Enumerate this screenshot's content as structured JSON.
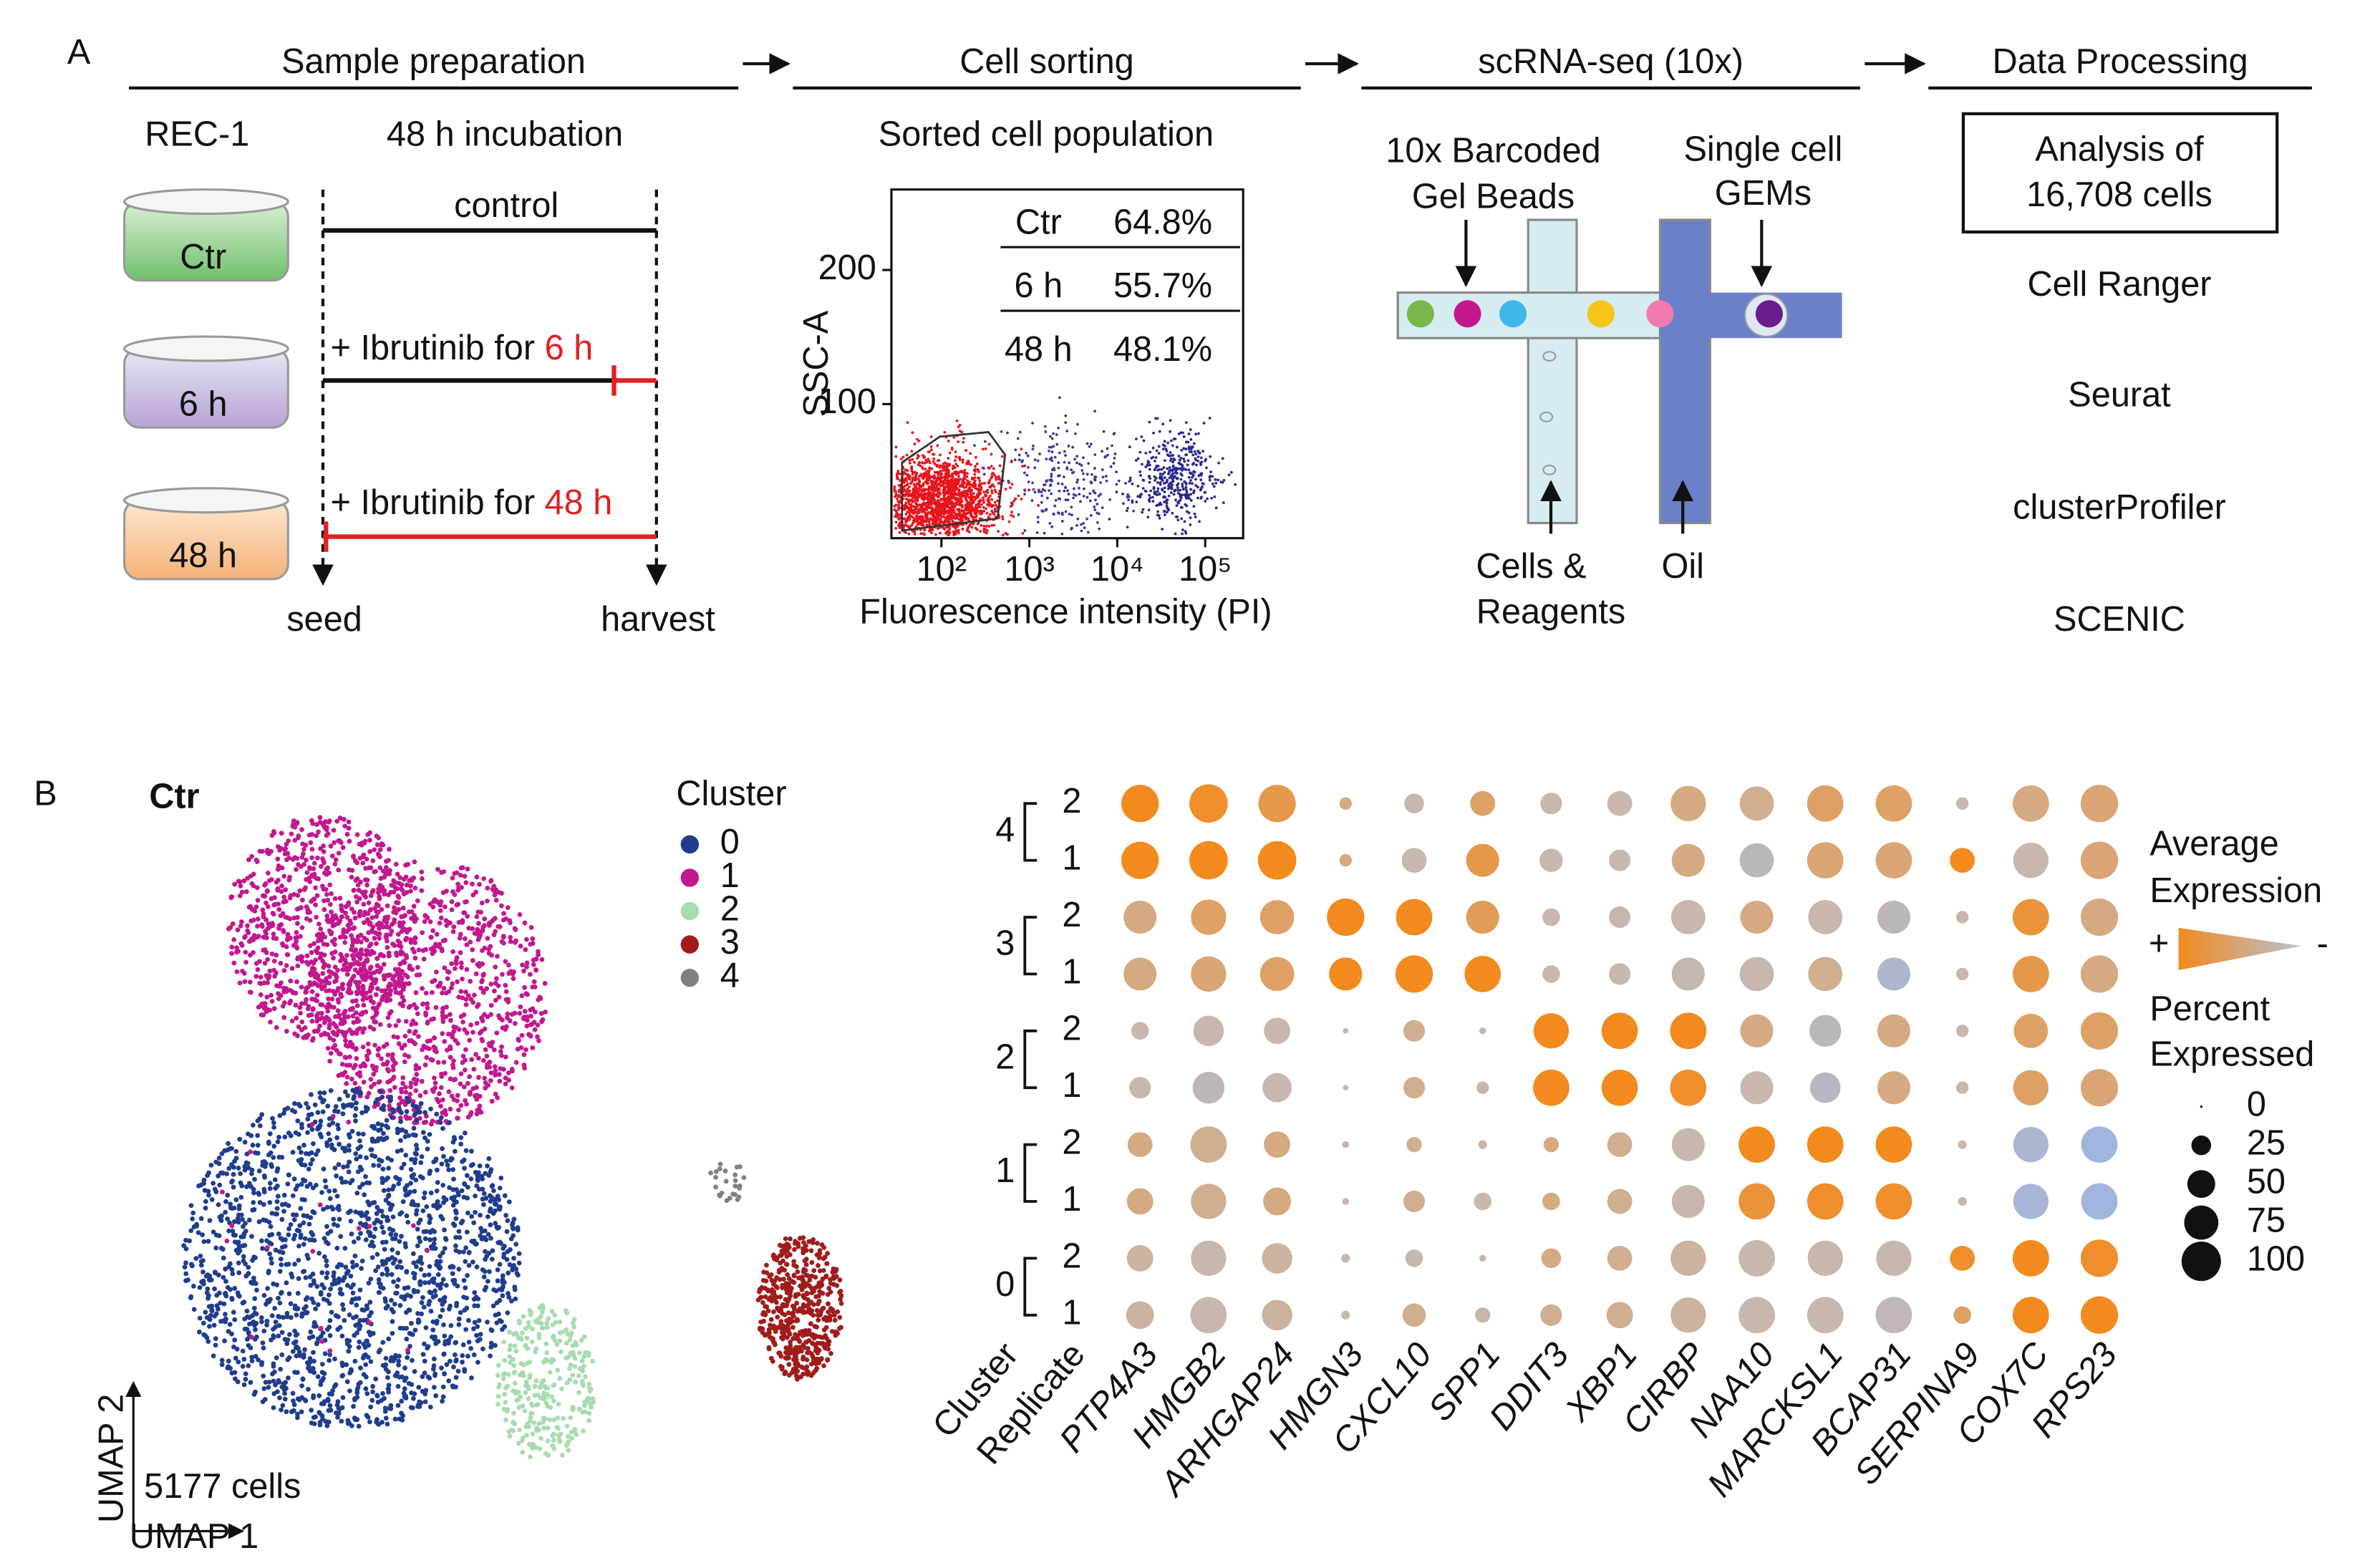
{
  "panel_a": {
    "label": "A",
    "steps": [
      "Sample preparation",
      "Cell sorting",
      "scRNA-seq (10x)",
      "Data Processing"
    ],
    "prep": {
      "cell_line": "REC-1",
      "incubation": "48 h incubation",
      "dishes": [
        "Ctr",
        "6 h",
        "48 h"
      ],
      "control": "control",
      "treat_prefix": "+ Ibrutinib for ",
      "treat_times": [
        "6 h",
        "48 h"
      ],
      "seed": "seed",
      "harvest": "harvest"
    },
    "sorting": {
      "title": "Sorted cell population",
      "ylabel": "SSC-A",
      "xlabel": "Fluorescence intensity (PI)",
      "ylim": [
        0,
        260
      ],
      "yticks": [
        100,
        200
      ],
      "xlim": [
        27,
        270000
      ],
      "xlog": true,
      "xticks": [
        {
          "value": 100,
          "label": "10²"
        },
        {
          "value": 1000,
          "label": "10³"
        },
        {
          "value": 10000,
          "label": "10⁴"
        },
        {
          "value": 100000,
          "label": "10⁵"
        }
      ],
      "table": [
        [
          "Ctr",
          "64.8%"
        ],
        [
          "6 h",
          "55.7%"
        ],
        [
          "48 h",
          "48.1%"
        ]
      ]
    },
    "seq": {
      "beads": [
        "10x Barcoded",
        "Gel Beads"
      ],
      "gems": [
        "Single cell",
        "GEMs"
      ],
      "cells": [
        "Cells &",
        "Reagents"
      ],
      "oil": "Oil"
    },
    "processing": {
      "box": [
        "Analysis of",
        "16,708 cells"
      ],
      "tools": [
        "Cell Ranger",
        "Seurat",
        "clusterProfiler",
        "SCENIC"
      ]
    }
  },
  "panel_b": {
    "label": "B",
    "umap": {
      "title": "Ctr",
      "legend_title": "Cluster",
      "clusters": [
        {
          "name": "0",
          "color": "#1f3d8c"
        },
        {
          "name": "1",
          "color": "#c2188f"
        },
        {
          "name": "2",
          "color": "#a8dcb0"
        },
        {
          "name": "3",
          "color": "#a01c1c"
        },
        {
          "name": "4",
          "color": "#808080"
        }
      ],
      "xlabel": "UMAP 1",
      "ylabel": "UMAP 2",
      "count": "5177 cells"
    },
    "dotplot": {
      "type": "dot",
      "axis_labels": [
        "Cluster",
        "Replicate"
      ],
      "genes": [
        "PTP4A3",
        "HMGB2",
        "ARHGAP24",
        "HMGN3",
        "CXCL10",
        "SPP1",
        "DDIT3",
        "XBP1",
        "CIRBP",
        "NAA10",
        "MARCKSL1",
        "BCAP31",
        "SERPINA9",
        "COX7C",
        "RPS23"
      ],
      "clusters": [
        "4",
        "3",
        "2",
        "1",
        "0"
      ],
      "replicates": [
        "2",
        "1"
      ],
      "percent": [
        [
          90,
          95,
          90,
          10,
          25,
          40,
          30,
          40,
          80,
          75,
          85,
          85,
          10,
          85,
          90
        ],
        [
          90,
          95,
          95,
          10,
          40,
          70,
          35,
          30,
          70,
          75,
          85,
          85,
          40,
          80,
          90
        ],
        [
          70,
          80,
          75,
          90,
          85,
          70,
          20,
          30,
          75,
          70,
          75,
          70,
          10,
          85,
          90
        ],
        [
          70,
          80,
          75,
          70,
          90,
          85,
          20,
          30,
          70,
          75,
          75,
          70,
          10,
          85,
          90
        ],
        [
          20,
          60,
          45,
          2,
          30,
          3,
          80,
          85,
          85,
          70,
          65,
          70,
          10,
          75,
          90
        ],
        [
          30,
          65,
          55,
          2,
          30,
          10,
          85,
          85,
          85,
          70,
          60,
          70,
          10,
          80,
          90
        ],
        [
          40,
          85,
          45,
          3,
          15,
          5,
          15,
          40,
          70,
          85,
          85,
          85,
          5,
          80,
          85
        ],
        [
          45,
          80,
          50,
          3,
          30,
          20,
          20,
          40,
          70,
          85,
          85,
          85,
          5,
          80,
          85
        ],
        [
          45,
          80,
          60,
          5,
          20,
          3,
          25,
          40,
          80,
          85,
          80,
          80,
          40,
          85,
          90
        ],
        [
          50,
          85,
          60,
          5,
          35,
          15,
          30,
          45,
          80,
          85,
          85,
          85,
          20,
          85,
          90
        ]
      ],
      "expression": [
        [
          1,
          0.9,
          0.7,
          0.3,
          0,
          0.5,
          0,
          0,
          0.3,
          0.2,
          0.5,
          0.5,
          0,
          0.3,
          0.4
        ],
        [
          1,
          1,
          1,
          0.3,
          0,
          0.7,
          0,
          0,
          0.3,
          -0.3,
          0.4,
          0.4,
          1,
          0,
          0.4
        ],
        [
          0.3,
          0.5,
          0.5,
          1,
          1,
          0.6,
          0,
          0,
          0,
          0.3,
          0,
          -0.3,
          0,
          0.8,
          0.3
        ],
        [
          0.3,
          0.4,
          0.5,
          1,
          1,
          1,
          0,
          0,
          -0.1,
          0,
          0.2,
          -0.6,
          0,
          0.7,
          0.3
        ],
        [
          0,
          0,
          0,
          0,
          0.2,
          0,
          1,
          1,
          1,
          0.3,
          -0.3,
          0.3,
          0,
          0.5,
          0.5
        ],
        [
          0,
          -0.3,
          0,
          0,
          0.2,
          0,
          1,
          1,
          0.9,
          0,
          -0.4,
          0.3,
          0,
          0.5,
          0.4
        ],
        [
          0.3,
          0.2,
          0.3,
          0,
          0.2,
          0,
          0.3,
          0.2,
          0,
          1,
          1,
          1,
          0,
          -0.7,
          -1
        ],
        [
          0.3,
          0.2,
          0.3,
          0,
          0.2,
          0,
          0.3,
          0.2,
          0,
          0.8,
          0.9,
          0.9,
          0,
          -0.8,
          -1
        ],
        [
          0.1,
          0,
          0.1,
          0,
          0,
          0,
          0.3,
          0.2,
          0.1,
          0,
          0,
          0,
          0.9,
          1,
          0.9
        ],
        [
          0.1,
          0,
          0.1,
          0,
          0.2,
          0,
          0.2,
          0.2,
          0.1,
          0,
          0,
          -0.2,
          0.5,
          1,
          1
        ]
      ],
      "color_low": "#9fb5e0",
      "color_mid": "#c8b7ad",
      "color_high": "#f28a1e",
      "color_legend": {
        "title": [
          "Average",
          "Expression"
        ],
        "high": "+",
        "low": "-"
      },
      "size_legend": {
        "title": [
          "Percent",
          "Expressed"
        ],
        "values": [
          0,
          25,
          50,
          75,
          100
        ]
      }
    }
  }
}
